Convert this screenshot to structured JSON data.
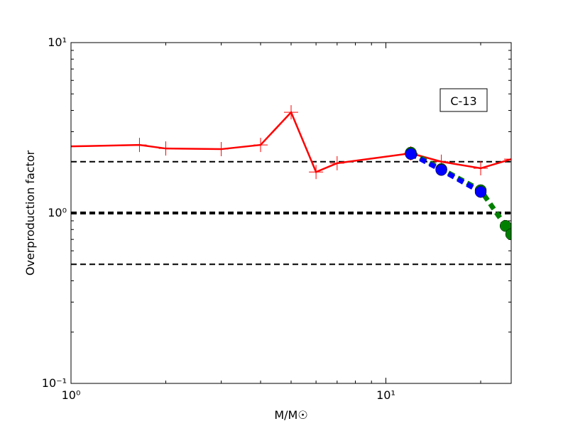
{
  "chart_data": {
    "type": "line",
    "xlabel": "M/M☉",
    "ylabel": "Overproduction factor",
    "annotation": "C-13",
    "xscale": "log",
    "yscale": "log",
    "xlim": [
      1,
      25
    ],
    "ylim": [
      0.1,
      10
    ],
    "xticks": [
      {
        "value": 1,
        "label": "10⁰"
      },
      {
        "value": 10,
        "label": "10¹"
      }
    ],
    "yticks": [
      {
        "value": 0.1,
        "label": "10⁻¹"
      },
      {
        "value": 1,
        "label": "10⁰"
      },
      {
        "value": 10,
        "label": "10¹"
      }
    ],
    "hlines": [
      {
        "value": 2,
        "color": "#000000",
        "width": 2
      },
      {
        "value": 1,
        "color": "#000000",
        "width": 4
      },
      {
        "value": 0.5,
        "color": "#000000",
        "width": 2
      }
    ],
    "series": [
      {
        "color": "#ff0000",
        "marker": "plus",
        "dashed": false,
        "x": [
          1,
          1.65,
          2,
          3,
          4,
          5,
          6,
          7,
          12,
          15,
          20,
          25
        ],
        "values": [
          2.46,
          2.51,
          2.39,
          2.37,
          2.51,
          3.9,
          1.74,
          1.96,
          2.24,
          2.0,
          1.83,
          2.07
        ]
      },
      {
        "color": "#008000",
        "marker": "circle",
        "dashed": true,
        "x": [
          12,
          15,
          20,
          24,
          25
        ],
        "values": [
          2.26,
          1.81,
          1.36,
          0.84,
          0.75
        ]
      },
      {
        "color": "#0000ff",
        "marker": "circle",
        "dashed": true,
        "x": [
          12,
          15,
          20
        ],
        "values": [
          2.22,
          1.79,
          1.33
        ]
      }
    ]
  }
}
